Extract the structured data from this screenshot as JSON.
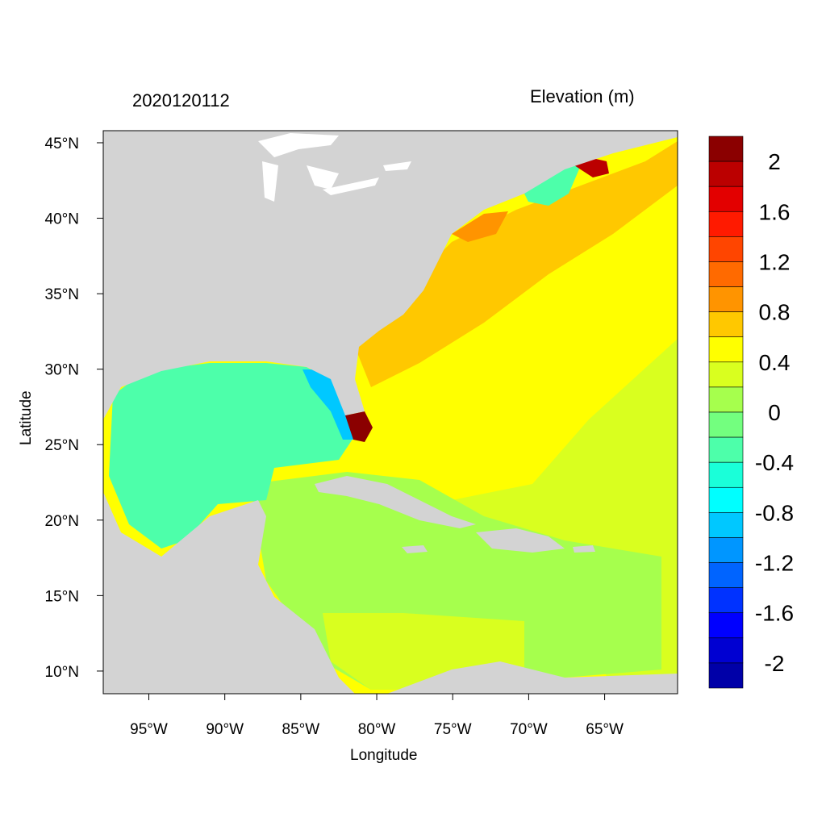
{
  "header": {
    "left_title": "2020120112",
    "right_title": "Elevation (m)"
  },
  "axes": {
    "xlabel": "Longitude",
    "ylabel": "Latitude",
    "xticks": [
      {
        "lon": -95,
        "label": "95°W"
      },
      {
        "lon": -90,
        "label": "90°W"
      },
      {
        "lon": -85,
        "label": "85°W"
      },
      {
        "lon": -80,
        "label": "80°W"
      },
      {
        "lon": -75,
        "label": "75°W"
      },
      {
        "lon": -70,
        "label": "70°W"
      },
      {
        "lon": -65,
        "label": "65°W"
      }
    ],
    "yticks": [
      {
        "lat": 45,
        "label": "45°N"
      },
      {
        "lat": 40,
        "label": "40°N"
      },
      {
        "lat": 35,
        "label": "35°N"
      },
      {
        "lat": 30,
        "label": "30°N"
      },
      {
        "lat": 25,
        "label": "25°N"
      },
      {
        "lat": 20,
        "label": "20°N"
      },
      {
        "lat": 15,
        "label": "15°N"
      },
      {
        "lat": 10,
        "label": "10°N"
      }
    ],
    "lon_range": [
      -98,
      -60.2
    ],
    "lat_range": [
      8.5,
      45.8
    ]
  },
  "colorbar": {
    "labels": [
      "2",
      "1.6",
      "1.2",
      "0.8",
      "0.4",
      "0",
      "-0.4",
      "-0.8",
      "-1.2",
      "-1.6",
      "-2"
    ],
    "colors": [
      "#8b0000",
      "#bb0000",
      "#e30000",
      "#ff1a00",
      "#ff4500",
      "#ff6a00",
      "#ff9400",
      "#ffc800",
      "#ffff00",
      "#d9ff1f",
      "#a6ff4d",
      "#73ff7f",
      "#4dffaa",
      "#1affd9",
      "#00ffff",
      "#00c8ff",
      "#0096ff",
      "#0064ff",
      "#0032ff",
      "#0000ff",
      "#0000d2",
      "#0000a8"
    ]
  },
  "chart_data": {
    "type": "heatmap",
    "title": "2020120112",
    "subtitle": "Elevation (m)",
    "xlabel": "Longitude",
    "ylabel": "Latitude",
    "xlim": [
      -98,
      -60.2
    ],
    "ylim": [
      8.5,
      45.8
    ],
    "colorbar_range": [
      -2.2,
      2.2
    ],
    "colorbar_step": 0.2,
    "approx_regions": [
      {
        "area": "Gulf of Mexico",
        "value": -0.3
      },
      {
        "area": "West Florida shelf",
        "value": -0.9
      },
      {
        "area": "South Florida coast",
        "value": 2.2
      },
      {
        "area": "Caribbean Sea",
        "value": 0.1
      },
      {
        "area": "Southern Caribbean",
        "value": 0.3
      },
      {
        "area": "Western Atlantic (off US East Coast)",
        "value": 0.7
      },
      {
        "area": "Central Atlantic",
        "value": 0.5
      },
      {
        "area": "Gulf of Maine",
        "value": -0.4
      },
      {
        "area": "Bay of Fundy",
        "value": 1.8
      }
    ]
  }
}
